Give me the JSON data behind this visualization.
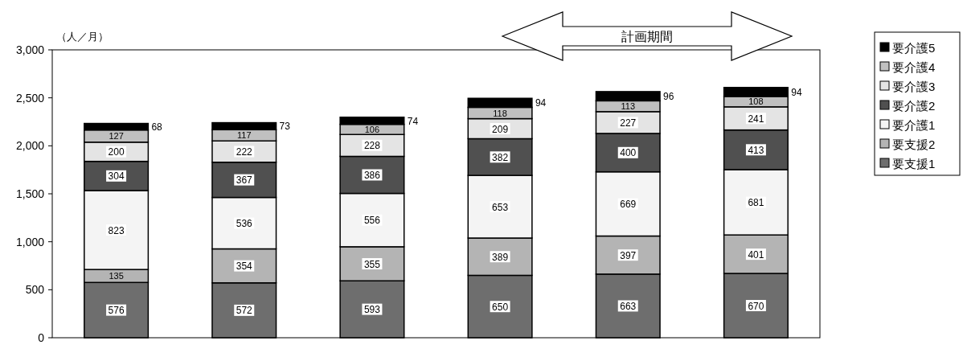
{
  "chart_data": {
    "type": "bar",
    "stacked": true,
    "ylabel": "（人／月）",
    "annotations": [
      "計画期間"
    ],
    "categories": [
      null,
      null,
      null,
      null,
      null,
      null
    ],
    "ylim": [
      0,
      3000
    ],
    "yticks": [
      0,
      {
        "value": 500,
        "label": "500"
      },
      {
        "value": 1000,
        "label": "1,000"
      },
      {
        "value": 1500,
        "label": "1,500"
      },
      {
        "value": 2000,
        "label": "2,000"
      },
      {
        "value": 2500,
        "label": "2,500"
      },
      {
        "value": 3000,
        "label": "3,000"
      }
    ],
    "grid": false,
    "legend": "right",
    "data_labels": true,
    "series": [
      {
        "name": "要支援1",
        "color": "#6e6e6e",
        "values": [
          576,
          572,
          593,
          650,
          663,
          670
        ]
      },
      {
        "name": "要支援2",
        "color": "#b4b4b4",
        "values": [
          135,
          354,
          355,
          389,
          397,
          401
        ]
      },
      {
        "name": "要介護1",
        "color": "#f4f4f4",
        "values": [
          823,
          536,
          556,
          653,
          669,
          681
        ]
      },
      {
        "name": "要介護2",
        "color": "#505050",
        "values": [
          304,
          367,
          386,
          382,
          400,
          413
        ]
      },
      {
        "name": "要介護3",
        "color": "#e4e4e4",
        "values": [
          200,
          222,
          228,
          209,
          227,
          241
        ]
      },
      {
        "name": "要介護4",
        "color": "#c0c0c0",
        "values": [
          127,
          117,
          106,
          118,
          113,
          108
        ]
      },
      {
        "name": "要介護5",
        "color": "#000000",
        "values": [
          68,
          73,
          74,
          94,
          96,
          94
        ]
      }
    ]
  }
}
